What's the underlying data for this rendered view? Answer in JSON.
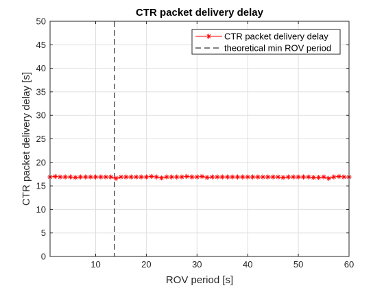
{
  "chart_data": {
    "type": "line",
    "title": "CTR packet delivery delay",
    "xlabel": "ROV period [s]",
    "ylabel": "CTR packet delivery delay [s]",
    "xlim": [
      1,
      60
    ],
    "ylim": [
      0,
      50
    ],
    "xticks": [
      10,
      20,
      30,
      40,
      50,
      60
    ],
    "yticks": [
      0,
      5,
      10,
      15,
      20,
      25,
      30,
      35,
      40,
      45,
      50
    ],
    "grid": true,
    "legend_position": "top-right",
    "series": [
      {
        "name": "CTR packet delivery delay",
        "color": "#ff0000",
        "marker": "asterisk",
        "x": [
          1,
          2,
          3,
          4,
          5,
          6,
          7,
          8,
          9,
          10,
          11,
          12,
          13,
          14,
          15,
          16,
          17,
          18,
          19,
          20,
          21,
          22,
          23,
          24,
          25,
          26,
          27,
          28,
          29,
          30,
          31,
          32,
          33,
          34,
          35,
          36,
          37,
          38,
          39,
          40,
          41,
          42,
          43,
          44,
          45,
          46,
          47,
          48,
          49,
          50,
          51,
          52,
          53,
          54,
          55,
          56,
          57,
          58,
          59,
          60
        ],
        "y": [
          16.9,
          17.0,
          16.9,
          16.9,
          16.9,
          16.8,
          16.9,
          16.9,
          16.9,
          16.9,
          16.9,
          16.9,
          16.9,
          16.6,
          16.9,
          16.9,
          16.9,
          16.9,
          16.9,
          16.9,
          17.0,
          16.9,
          16.7,
          16.9,
          16.9,
          16.9,
          16.9,
          17.0,
          16.9,
          16.9,
          17.0,
          16.8,
          16.9,
          16.9,
          16.9,
          16.9,
          16.9,
          16.9,
          16.9,
          16.9,
          16.9,
          16.9,
          16.9,
          16.9,
          16.9,
          16.9,
          16.8,
          16.9,
          16.9,
          16.9,
          16.9,
          16.9,
          16.8,
          16.8,
          16.9,
          16.6,
          16.9,
          17.0,
          16.9,
          16.9
        ]
      }
    ],
    "reference_lines": [
      {
        "name": "theoretical min ROV period",
        "orientation": "vertical",
        "x": 13.7,
        "color": "#000000",
        "style": "dashed"
      }
    ]
  }
}
